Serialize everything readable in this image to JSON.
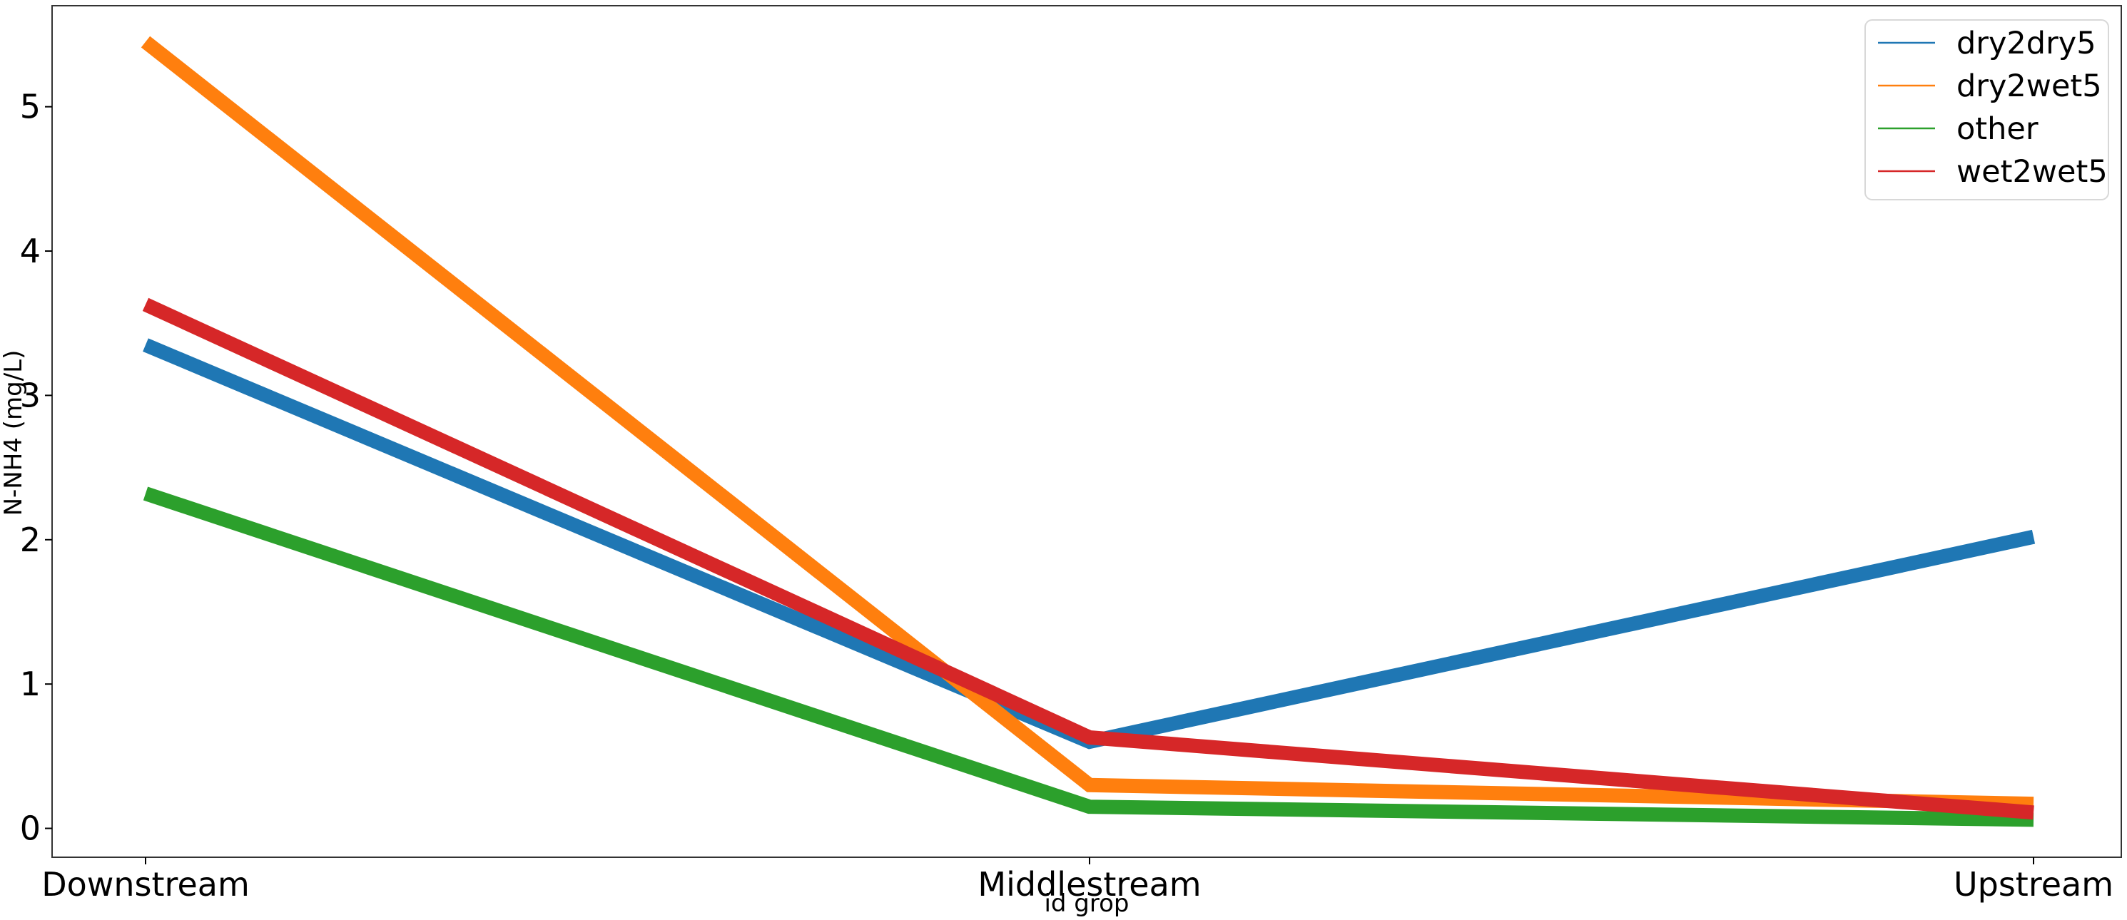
{
  "chart_data": {
    "type": "line",
    "title": "",
    "xlabel": "id grop",
    "ylabel": "N-NH4 (mg/L)",
    "categories": [
      "Downstream",
      "Middlestream",
      "Upstream"
    ],
    "yticks": [
      "0",
      "1",
      "2",
      "3",
      "4",
      "5"
    ],
    "ylim": [
      -0.2,
      5.7
    ],
    "grid": false,
    "legend_position": "top-right",
    "series": [
      {
        "name": "dry2dry5",
        "color": "#1f77b4",
        "values": [
          3.35,
          0.6,
          2.02
        ]
      },
      {
        "name": "dry2wet5",
        "color": "#ff7f0e",
        "values": [
          5.45,
          0.3,
          0.17
        ]
      },
      {
        "name": "other",
        "color": "#2ca02c",
        "values": [
          2.32,
          0.15,
          0.06
        ]
      },
      {
        "name": "wet2wet5",
        "color": "#d62728",
        "values": [
          3.63,
          0.63,
          0.11
        ]
      }
    ]
  }
}
